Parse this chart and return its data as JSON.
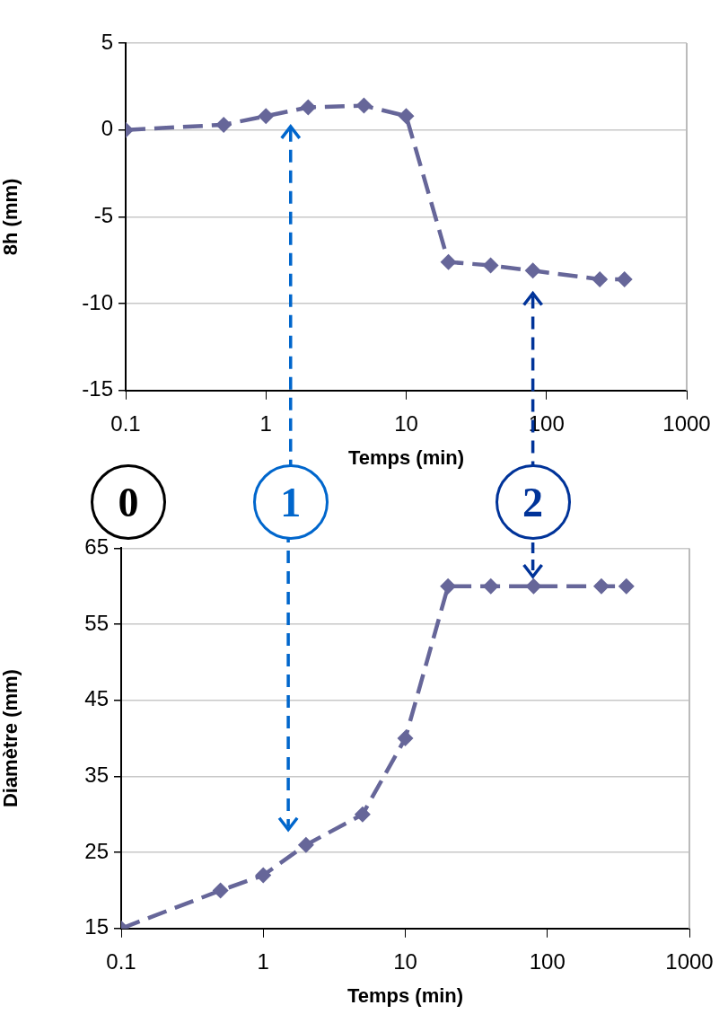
{
  "chart_data": [
    {
      "type": "line",
      "x": [
        0.1,
        0.5,
        1,
        2,
        5,
        10,
        20,
        40,
        80,
        240,
        360
      ],
      "series": [
        {
          "color": "#666699",
          "values": [
            0,
            0.3,
            0.8,
            1.3,
            1.4,
            0.8,
            -7.6,
            -7.8,
            -8.1,
            -8.6,
            -8.6
          ]
        }
      ],
      "xlim": [
        0.1,
        1000
      ],
      "xticks": [
        0.1,
        1,
        10,
        100,
        1000
      ],
      "ylim": [
        -15,
        5
      ],
      "yticks": [
        -15,
        -10,
        -5,
        0,
        5
      ],
      "xlabel": "Temps (min)",
      "ylabel": "8h (mm)",
      "log": "x",
      "grid": "y",
      "marker": "diamond",
      "line_style": "dashed",
      "ref_lines": [
        {
          "axis": "x",
          "value": 1.5,
          "color": "#0066cc",
          "line_style": "dashed"
        },
        {
          "axis": "x",
          "value": 80,
          "color": "#003399",
          "line_style": "dashed"
        }
      ],
      "annotations": [
        "0",
        "1",
        "2"
      ]
    },
    {
      "type": "line",
      "x": [
        0.1,
        0.5,
        1,
        2,
        5,
        10,
        20,
        40,
        80,
        240,
        360
      ],
      "series": [
        {
          "color": "#666699",
          "values": [
            15,
            20,
            22,
            26,
            30,
            40,
            60,
            60,
            60,
            60,
            60
          ]
        }
      ],
      "xlim": [
        0.1,
        1000
      ],
      "xticks": [
        0.1,
        1,
        10,
        100,
        1000
      ],
      "ylim": [
        15,
        65
      ],
      "yticks": [
        15,
        25,
        35,
        45,
        55,
        65
      ],
      "xlabel": "Temps (min)",
      "ylabel": "Diamètre (mm)",
      "log": "x",
      "grid": "y",
      "marker": "diamond",
      "line_style": "dashed",
      "ref_lines": [
        {
          "axis": "x",
          "value": 1.5,
          "color": "#0066cc",
          "line_style": "dashed"
        }
      ]
    }
  ]
}
